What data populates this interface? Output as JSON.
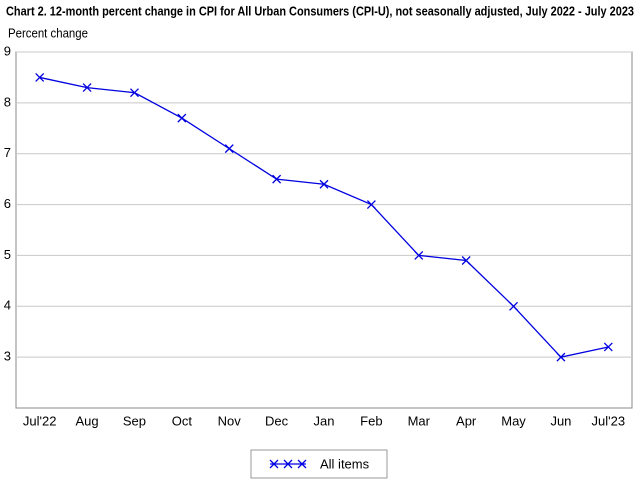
{
  "chart_data": {
    "type": "line",
    "title": "Chart 2. 12-month percent change in CPI for All Urban Consumers (CPI-U), not seasonally adjusted, July 2022 - July 2023",
    "y_label": "Percent change",
    "categories": [
      "Jul'22",
      "Aug",
      "Sep",
      "Oct",
      "Nov",
      "Dec",
      "Jan",
      "Feb",
      "Mar",
      "Apr",
      "May",
      "Jun",
      "Jul'23"
    ],
    "series": [
      {
        "name": "All items",
        "color": "#0000e0",
        "values": [
          8.5,
          8.3,
          8.2,
          7.7,
          7.1,
          6.5,
          6.4,
          6.0,
          5.0,
          4.9,
          4.0,
          3.0,
          3.2
        ]
      }
    ],
    "ylim": [
      2,
      9
    ],
    "yticks": [
      3,
      4,
      5,
      6,
      7,
      8,
      9
    ],
    "grid": true
  }
}
